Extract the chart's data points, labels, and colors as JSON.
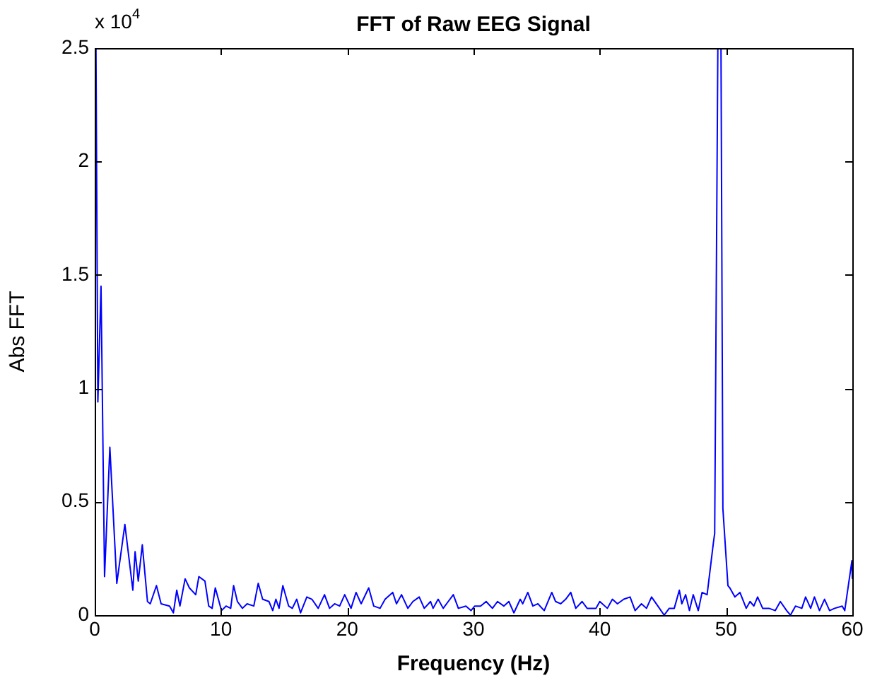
{
  "chart_data": {
    "type": "line",
    "title": "FFT of Raw EEG Signal",
    "xlabel": "Frequency (Hz)",
    "ylabel": "Abs FFT",
    "annotations": [
      "x 10$^{4}$"
    ],
    "xlim": [
      0,
      60
    ],
    "xticks": [
      0,
      10,
      20,
      30,
      40,
      50,
      60
    ],
    "ylim": [
      0,
      2.5
    ],
    "yticks": [
      0,
      0.5,
      1,
      1.5,
      2,
      2.5
    ],
    "grid": false,
    "legend": false,
    "series": [
      {
        "color": "#0000ff",
        "x": [
          0.1,
          0.25,
          0.5,
          0.78,
          1.2,
          1.75,
          2.39,
          3.02,
          3.2,
          3.45,
          3.77,
          4.18,
          4.4,
          4.89,
          5.26,
          5.93,
          6.23,
          6.5,
          6.75,
          7.16,
          7.5,
          8,
          8.25,
          8.73,
          9.03,
          9.3,
          9.55,
          10.04,
          10.4,
          10.77,
          11,
          11.3,
          11.7,
          12.07,
          12.6,
          12.95,
          13.3,
          13.8,
          14.1,
          14.35,
          14.6,
          14.9,
          15.36,
          15.65,
          16,
          16.3,
          16.8,
          17.2,
          17.7,
          18.2,
          18.6,
          19,
          19.4,
          19.8,
          20.3,
          20.7,
          21.1,
          21.7,
          22.1,
          22.6,
          23,
          23.6,
          23.9,
          24.3,
          24.8,
          25.2,
          25.7,
          26.1,
          26.6,
          26.8,
          27.2,
          27.6,
          28,
          28.4,
          28.8,
          29.4,
          29.8,
          30.1,
          30.56,
          31,
          31.5,
          31.9,
          32.4,
          32.8,
          33.2,
          33.7,
          33.9,
          34.3,
          34.7,
          35.1,
          35.6,
          36.2,
          36.5,
          36.9,
          37.3,
          37.7,
          38.1,
          38.6,
          39,
          39.7,
          40,
          40.6,
          41,
          41.4,
          41.9,
          42.4,
          42.8,
          43.3,
          43.7,
          44.1,
          44.6,
          45.1,
          45.5,
          45.9,
          46.3,
          46.5,
          46.8,
          47.1,
          47.4,
          47.8,
          48.1,
          48.5,
          49,
          49.1,
          49.35,
          49.6,
          49.75,
          50.15,
          50.3,
          50.7,
          51.1,
          51.6,
          51.9,
          52.2,
          52.5,
          52.9,
          53.4,
          53.9,
          54.3,
          54.8,
          55.1,
          55.5,
          56,
          56.3,
          56.7,
          57,
          57.4,
          57.8,
          58.2,
          58.6,
          59.2,
          59.4,
          59.97,
          60
        ],
        "values": [
          2.5,
          0.94,
          1.45,
          0.17,
          0.74,
          0.14,
          0.4,
          0.11,
          0.28,
          0.15,
          0.31,
          0.06,
          0.05,
          0.13,
          0.05,
          0.04,
          0.01,
          0.11,
          0.04,
          0.16,
          0.12,
          0.09,
          0.17,
          0.15,
          0.04,
          0.03,
          0.12,
          0.02,
          0.04,
          0.03,
          0.13,
          0.06,
          0.03,
          0.05,
          0.04,
          0.14,
          0.07,
          0.06,
          0.02,
          0.07,
          0.03,
          0.13,
          0.04,
          0.03,
          0.07,
          0.01,
          0.08,
          0.07,
          0.03,
          0.09,
          0.03,
          0.05,
          0.04,
          0.09,
          0.03,
          0.1,
          0.05,
          0.12,
          0.04,
          0.03,
          0.07,
          0.1,
          0.05,
          0.09,
          0.03,
          0.06,
          0.08,
          0.03,
          0.06,
          0.03,
          0.07,
          0.03,
          0.06,
          0.09,
          0.03,
          0.04,
          0.02,
          0.04,
          0.04,
          0.06,
          0.03,
          0.06,
          0.04,
          0.06,
          0.01,
          0.07,
          0.05,
          0.1,
          0.04,
          0.05,
          0.02,
          0.1,
          0.06,
          0.05,
          0.07,
          0.1,
          0.03,
          0.06,
          0.03,
          0.03,
          0.06,
          0.03,
          0.07,
          0.05,
          0.07,
          0.08,
          0.02,
          0.05,
          0.03,
          0.08,
          0.04,
          0,
          0.03,
          0.03,
          0.11,
          0.05,
          0.09,
          0.02,
          0.09,
          0.02,
          0.1,
          0.09,
          0.32,
          0.36,
          2.5,
          2.5,
          0.47,
          0.13,
          0.12,
          0.08,
          0.1,
          0.03,
          0.06,
          0.04,
          0.08,
          0.03,
          0.03,
          0.02,
          0.06,
          0.02,
          0,
          0.04,
          0.03,
          0.08,
          0.03,
          0.08,
          0.02,
          0.07,
          0.02,
          0.03,
          0.04,
          0.02,
          0.24,
          0.16
        ]
      }
    ]
  }
}
